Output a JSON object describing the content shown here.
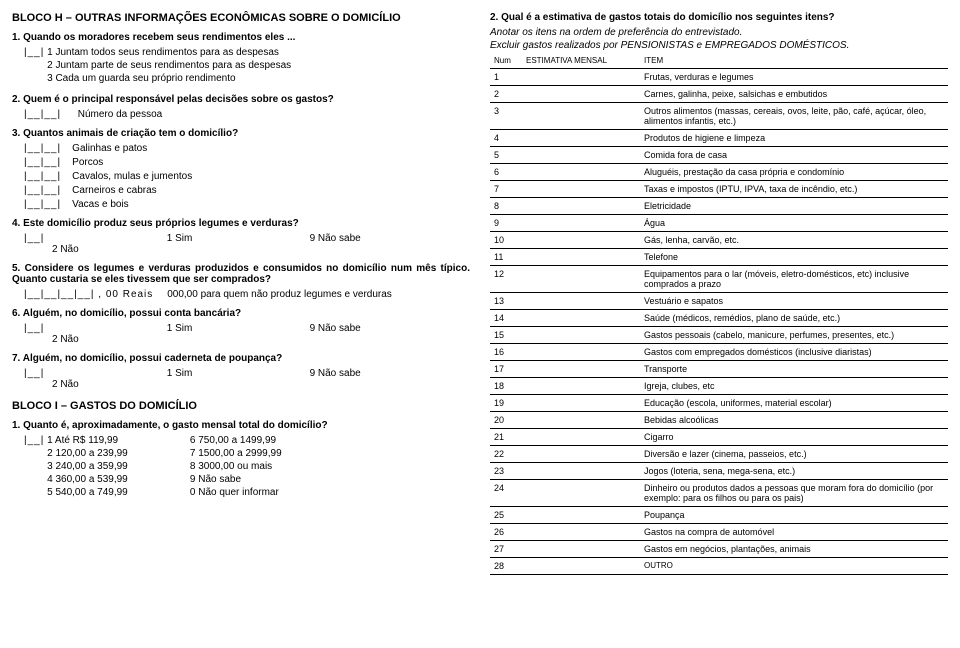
{
  "blockH": {
    "title": "BLOCO H – OUTRAS INFORMAÇÕES ECONÔMICAS SOBRE O DOMICÍLIO",
    "q1": {
      "text": "1. Quando os moradores recebem seus rendimentos eles ...",
      "box": "|__|",
      "opts": [
        "1 Juntam todos seus rendimentos para as despesas",
        "2 Juntam parte de seus rendimentos para as despesas",
        "3 Cada um guarda seu próprio rendimento"
      ]
    },
    "q2": {
      "text": "2. Quem é o principal responsável pelas decisões sobre os gastos?",
      "box": "|__|__|",
      "label": "Número da pessoa"
    },
    "q3": {
      "text": "3. Quantos animais de criação tem o domicílio?",
      "box": "|__|__|",
      "rows": [
        "Galinhas e patos",
        "Porcos",
        "Cavalos, mulas e jumentos",
        "Carneiros e cabras",
        "Vacas e bois"
      ]
    },
    "q4": {
      "text": "4. Este domicílio produz seus próprios legumes e verduras?",
      "box": "|__|",
      "left": "1 Sim",
      "right": "9 Não sabe",
      "below": "2 Não"
    },
    "q5": {
      "text": "5. Considere os legumes e verduras produzidos e consumidos no domicílio num mês típico. Quanto custaria se eles tivessem que ser comprados?",
      "box": "|__|__|__|__| , 00 Reais",
      "after": "000,00 para quem não produz legumes e verduras"
    },
    "q6": {
      "text": "6. Alguém, no domicílio, possui conta bancária?",
      "box": "|__|",
      "left": "1 Sim",
      "right": "9 Não sabe",
      "below": "2 Não"
    },
    "q7": {
      "text": "7. Alguém, no domicílio, possui caderneta de poupança?",
      "box": "|__|",
      "left": "1 Sim",
      "right": "9 Não sabe",
      "below": "2 Não"
    }
  },
  "blockI": {
    "title": "BLOCO I – GASTOS DO DOMICÍLIO",
    "q1": {
      "text": "1. Quanto é, aproximadamente, o gasto mensal total do domicílio?",
      "box": "|__|",
      "left": [
        "1 Até  R$ 119,99",
        "2 120,00 a 239,99",
        "3 240,00 a 359,99",
        "4 360,00 a 539,99",
        "5 540,00 a 749,99"
      ],
      "right": [
        "6 750,00 a 1499,99",
        "7 1500,00 a 2999,99",
        "8 3000,00 ou mais",
        "9 Não sabe",
        "0 Não quer informar"
      ]
    },
    "q2": {
      "text": "2. Qual é a estimativa de gastos totais do domicílio nos seguintes itens?",
      "note1": "Anotar os itens na ordem de preferência do entrevistado.",
      "note2": "Excluir gastos realizados por PENSIONISTAS e EMPREGADOS DOMÉSTICOS.",
      "colNum": "Num",
      "colEst": "ESTIMATIVA MENSAL",
      "colItem": "ITEM",
      "rows": [
        {
          "n": "1",
          "t": "Frutas, verduras e legumes"
        },
        {
          "n": "2",
          "t": "Carnes, galinha, peixe, salsichas e embutidos"
        },
        {
          "n": "3",
          "t": "Outros alimentos (massas, cereais, ovos, leite, pão, café, açúcar, óleo, alimentos infantis, etc.)"
        },
        {
          "n": "4",
          "t": "Produtos de higiene e limpeza"
        },
        {
          "n": "5",
          "t": "Comida fora de casa"
        },
        {
          "n": "6",
          "t": "Aluguéis, prestação da casa própria e condomínio"
        },
        {
          "n": "7",
          "t": "Taxas e impostos (IPTU, IPVA, taxa de incêndio, etc.)"
        },
        {
          "n": "8",
          "t": "Eletricidade"
        },
        {
          "n": "9",
          "t": "Água"
        },
        {
          "n": "10",
          "t": "Gás, lenha, carvão, etc."
        },
        {
          "n": "11",
          "t": "Telefone"
        },
        {
          "n": "12",
          "t": "Equipamentos para o lar (móveis, eletro-domésticos, etc) inclusive comprados a prazo"
        },
        {
          "n": "13",
          "t": "Vestuário e sapatos"
        },
        {
          "n": "14",
          "t": "Saúde (médicos, remédios, plano de saúde, etc.)"
        },
        {
          "n": "15",
          "t": "Gastos pessoais (cabelo, manicure, perfumes, presentes, etc.)"
        },
        {
          "n": "16",
          "t": "Gastos com empregados domésticos (inclusive diaristas)"
        },
        {
          "n": "17",
          "t": "Transporte"
        },
        {
          "n": "18",
          "t": "Igreja, clubes, etc"
        },
        {
          "n": "19",
          "t": "Educação (escola, uniformes, material escolar)"
        },
        {
          "n": "20",
          "t": "Bebidas alcoólicas"
        },
        {
          "n": "21",
          "t": "Cigarro"
        },
        {
          "n": "22",
          "t": "Diversão e lazer (cinema, passeios, etc.)"
        },
        {
          "n": "23",
          "t": "Jogos (loteria, sena, mega-sena, etc.)"
        },
        {
          "n": "24",
          "t": "Dinheiro ou produtos dados a pessoas que moram fora do domicílio (por exemplo: para os filhos ou para os pais)"
        },
        {
          "n": "25",
          "t": "Poupança"
        },
        {
          "n": "26",
          "t": "Gastos na compra de automóvel"
        },
        {
          "n": "27",
          "t": "Gastos em negócios, plantações, animais"
        },
        {
          "n": "28",
          "t": "OUTRO"
        }
      ]
    }
  }
}
